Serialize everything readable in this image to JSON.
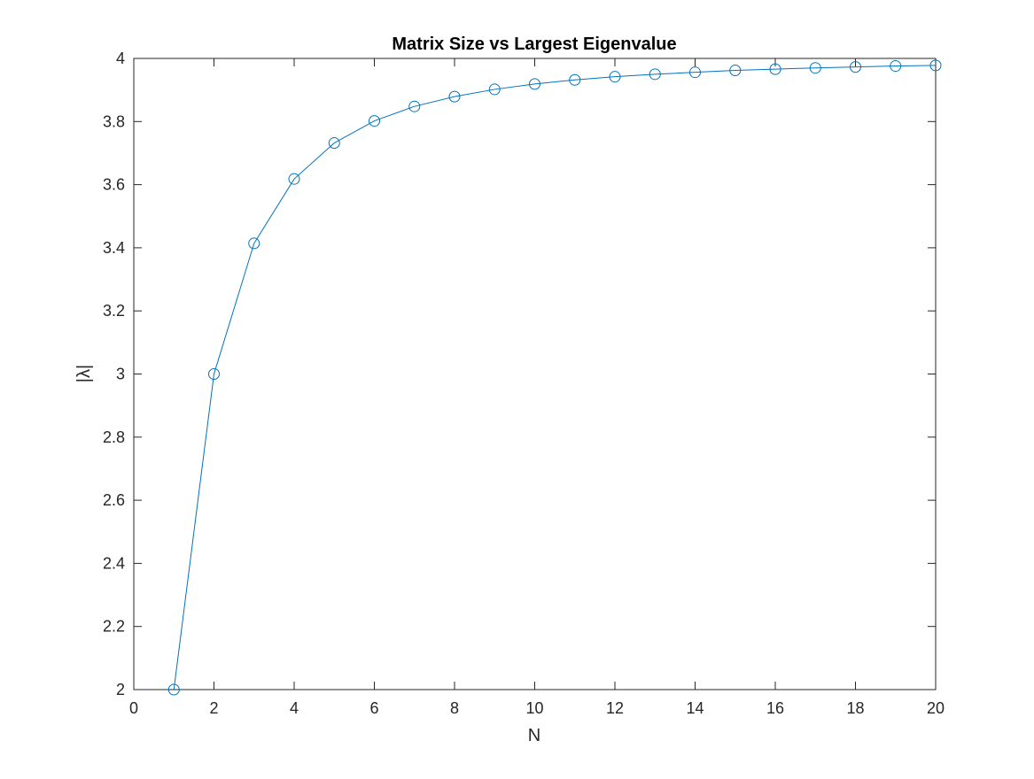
{
  "chart_data": {
    "type": "line",
    "title": "Matrix Size vs Largest Eigenvalue",
    "xlabel": "N",
    "ylabel": "|λ|",
    "xlim": [
      0,
      20
    ],
    "ylim": [
      2,
      4
    ],
    "xticks": [
      0,
      2,
      4,
      6,
      8,
      10,
      12,
      14,
      16,
      18,
      20
    ],
    "yticks": [
      2,
      2.2,
      2.4,
      2.6,
      2.8,
      3,
      3.2,
      3.4,
      3.6,
      3.8,
      4
    ],
    "xtick_labels": [
      "0",
      "2",
      "4",
      "6",
      "8",
      "10",
      "12",
      "14",
      "16",
      "18",
      "20"
    ],
    "ytick_labels": [
      "2",
      "2.2",
      "2.4",
      "2.6",
      "2.8",
      "3",
      "3.2",
      "3.4",
      "3.6",
      "3.8",
      "4"
    ],
    "grid": false,
    "marker": "circle",
    "series": [
      {
        "color": "#0072bd",
        "x": [
          1,
          2,
          3,
          4,
          5,
          6,
          7,
          8,
          9,
          10,
          11,
          12,
          13,
          14,
          15,
          16,
          17,
          18,
          19,
          20
        ],
        "y": [
          2.0,
          3.0,
          3.414,
          3.618,
          3.732,
          3.802,
          3.848,
          3.879,
          3.902,
          3.919,
          3.932,
          3.942,
          3.95,
          3.956,
          3.962,
          3.966,
          3.97,
          3.973,
          3.976,
          3.978
        ]
      }
    ]
  }
}
